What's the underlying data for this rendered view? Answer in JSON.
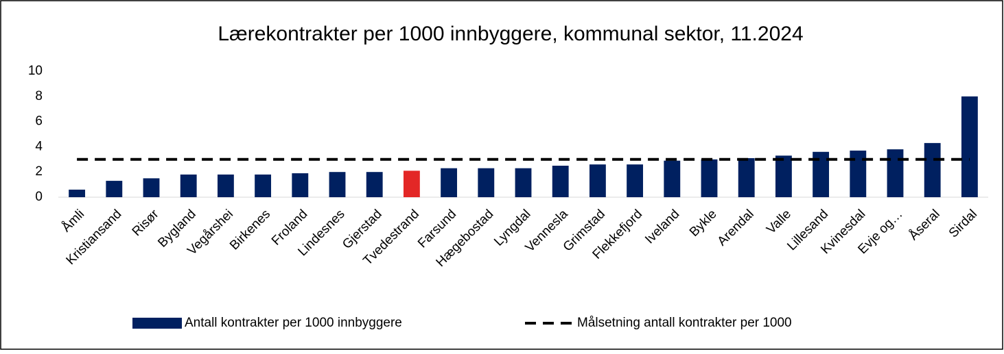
{
  "chart_data": {
    "type": "bar",
    "title": "Lærekontrakter per 1000 innbyggere, kommunal sektor, 11.2024",
    "categories": [
      "Åmli",
      "Kristiansand",
      "Risør",
      "Bygland",
      "Vegårshei",
      "Birkenes",
      "Froland",
      "Lindesnes",
      "Gjerstad",
      "Tvedestrand",
      "Farsund",
      "Hægebostad",
      "Lyngdal",
      "Vennesla",
      "Grimstad",
      "Flekkefjord",
      "Iveland",
      "Bykle",
      "Arendal",
      "Valle",
      "Lillesand",
      "Kvinesdal",
      "Evje og…",
      "Åseral",
      "Sirdal"
    ],
    "series": [
      {
        "name": "Antall kontrakter per 1000 innbyggere",
        "type": "bar",
        "color": "#002060",
        "colors": [
          "#002060",
          "#002060",
          "#002060",
          "#002060",
          "#002060",
          "#002060",
          "#002060",
          "#002060",
          "#002060",
          "#e32726",
          "#002060",
          "#002060",
          "#002060",
          "#002060",
          "#002060",
          "#002060",
          "#002060",
          "#002060",
          "#002060",
          "#002060",
          "#002060",
          "#002060",
          "#002060",
          "#002060",
          "#002060"
        ],
        "values": [
          0.6,
          1.3,
          1.5,
          1.8,
          1.8,
          1.8,
          1.9,
          2.0,
          2.0,
          2.1,
          2.3,
          2.3,
          2.3,
          2.5,
          2.6,
          2.6,
          2.9,
          3.0,
          3.1,
          3.3,
          3.6,
          3.7,
          3.8,
          4.3,
          8.0
        ]
      },
      {
        "name": "Målsetning antall kontrakter per 1000",
        "type": "line",
        "color": "#000000",
        "dashed": true,
        "values": [
          3,
          3,
          3,
          3,
          3,
          3,
          3,
          3,
          3,
          3,
          3,
          3,
          3,
          3,
          3,
          3,
          3,
          3,
          3,
          3,
          3,
          3,
          3,
          3,
          3
        ]
      }
    ],
    "ylim": [
      0,
      10
    ],
    "yticks": [
      0,
      2,
      4,
      6,
      8,
      10
    ],
    "grid": false,
    "legend": "bottom"
  }
}
